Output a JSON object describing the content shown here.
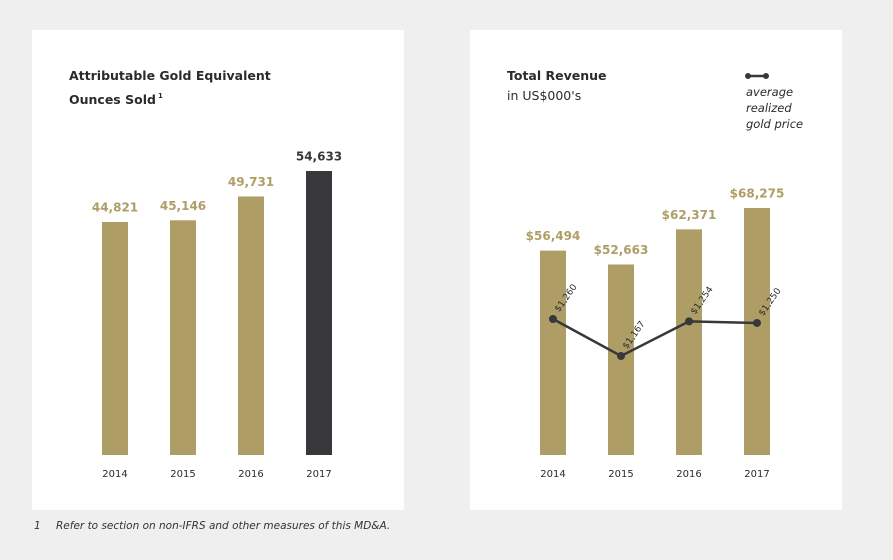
{
  "chart_data": [
    {
      "type": "bar",
      "title": "Attributable Gold Equivalent Ounces Sold",
      "categories": [
        "2014",
        "2015",
        "2016",
        "2017"
      ],
      "values": [
        44821,
        45146,
        49731,
        54633
      ],
      "value_labels": [
        "44,821",
        "45,146",
        "49,731",
        "54,633"
      ],
      "colors": [
        "#ae9e66",
        "#ae9e66",
        "#ae9e66",
        "#38383b"
      ]
    },
    {
      "type": "bar_line",
      "title": "Total Revenue",
      "subtitle": "in US$000's",
      "categories": [
        "2014",
        "2015",
        "2016",
        "2017"
      ],
      "values": [
        56494,
        52663,
        62371,
        68275
      ],
      "value_labels": [
        "$56,494",
        "$52,663",
        "$62,371",
        "$68,275"
      ],
      "color": "#ae9e66",
      "line": {
        "name": "average realized gold price",
        "color": "#38383b",
        "values": [
          1260,
          1167,
          1254,
          1250
        ],
        "value_labels": [
          "$1,260",
          "$1,167",
          "$1,254",
          "$1,250"
        ]
      }
    }
  ],
  "footnote": {
    "marker": "1",
    "text": "Refer to section on non-IFRS and other measures of this MD&A."
  }
}
